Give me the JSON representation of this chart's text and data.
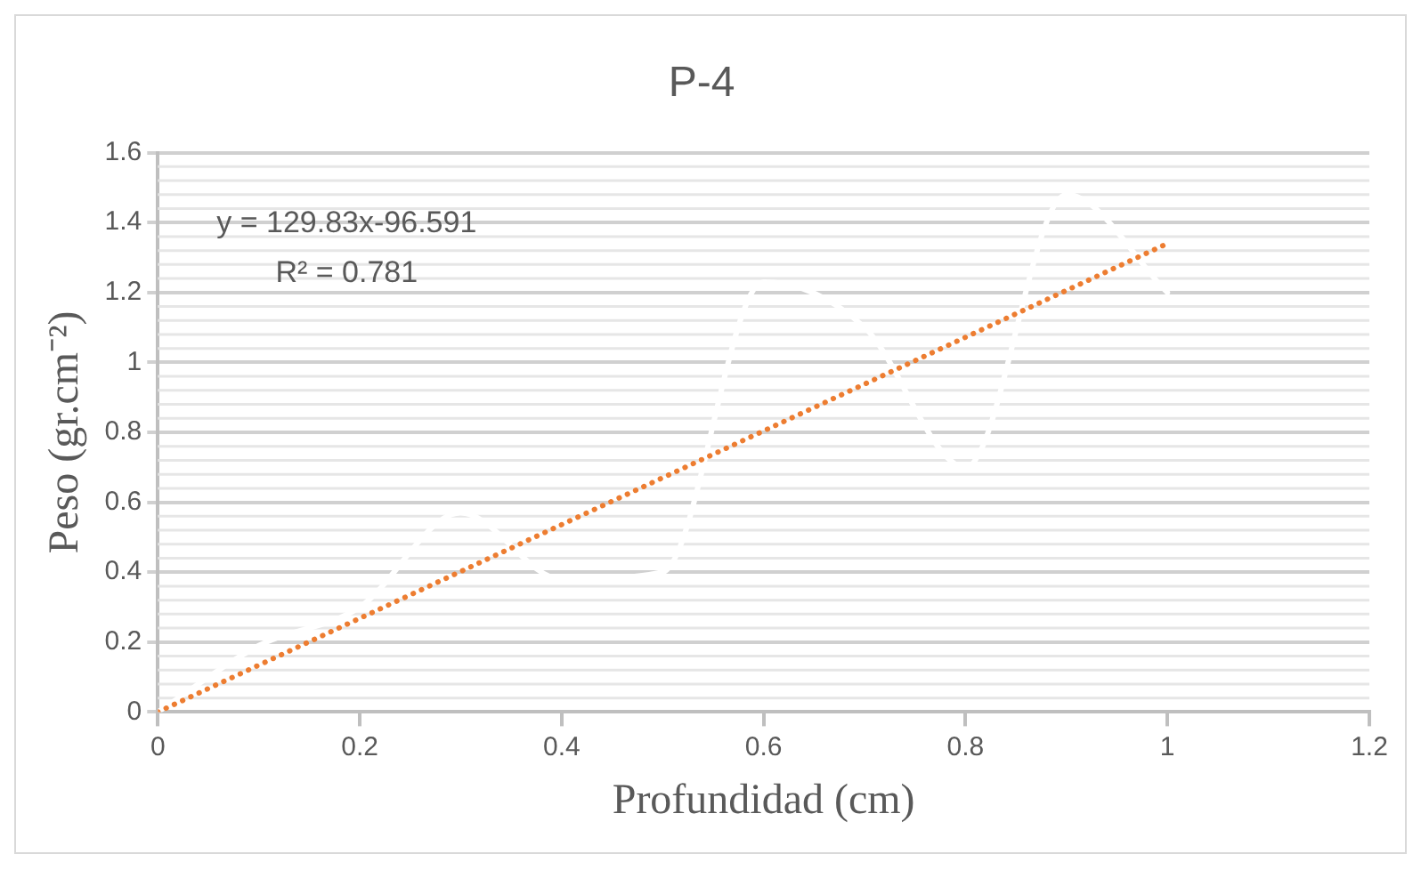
{
  "chart_data": {
    "type": "line",
    "title": "P-4",
    "xlabel": "Profundidad (cm)",
    "ylabel": "Peso (gr.cm⁻²)",
    "x": [
      0,
      0.1,
      0.2,
      0.3,
      0.4,
      0.5,
      0.6,
      0.7,
      0.8,
      0.9,
      1
    ],
    "series": [
      {
        "color": "#ffffff",
        "values": [
          0,
          0.19,
          0.3,
          0.57,
          0.38,
          0.4,
          1.23,
          1.1,
          0.7,
          1.48,
          1.2
        ]
      },
      {
        "type": "line",
        "x": [
          0,
          1
        ],
        "color": "#ed7d31",
        "line_style": "dotted",
        "values": [
          0,
          1.34
        ]
      }
    ],
    "xlim": [
      0,
      1.2
    ],
    "xticks": [
      0,
      0.2,
      0.4,
      0.6,
      0.8,
      1,
      1.2
    ],
    "ylim": [
      0,
      1.6
    ],
    "yticks": [
      0,
      0.2,
      0.4,
      0.6,
      0.8,
      1,
      1.2,
      1.4,
      1.6
    ],
    "grid": "y",
    "legend": false,
    "marker": "none",
    "annotations": [
      "y = 129.83x-96.591",
      "R² = 0.781"
    ]
  }
}
